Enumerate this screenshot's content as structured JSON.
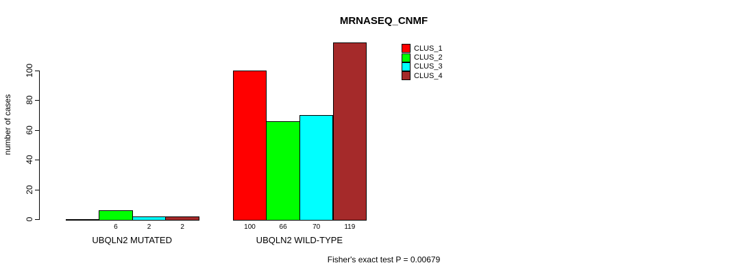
{
  "chart_data": {
    "type": "bar",
    "title": "MRNASEQ_CNMF",
    "ylabel": "number of cases",
    "xlabel": "",
    "ylim": [
      0,
      100
    ],
    "yticks": [
      0,
      20,
      40,
      60,
      80,
      100
    ],
    "grid": false,
    "background": "#FFFFFF",
    "axis_color": "#000000",
    "categories": [
      "UBQLN2 MUTATED",
      "UBQLN2 WILD-TYPE"
    ],
    "series": [
      {
        "name": "CLUS_1",
        "color": "#FF0000",
        "values": [
          0,
          100
        ]
      },
      {
        "name": "CLUS_2",
        "color": "#00FF00",
        "values": [
          6,
          66
        ]
      },
      {
        "name": "CLUS_3",
        "color": "#00FFFF",
        "values": [
          2,
          70
        ]
      },
      {
        "name": "CLUS_4",
        "color": "#A52A2A",
        "values": [
          2,
          119
        ]
      }
    ],
    "bar_value_labels": [
      [
        "",
        "6",
        "2",
        "2"
      ],
      [
        "100",
        "66",
        "70",
        "119"
      ]
    ],
    "legend": {
      "position": "top-right",
      "entries": [
        "CLUS_1",
        "CLUS_2",
        "CLUS_3",
        "CLUS_4"
      ]
    },
    "footnote": "Fisher's exact test P = 0.00679"
  }
}
